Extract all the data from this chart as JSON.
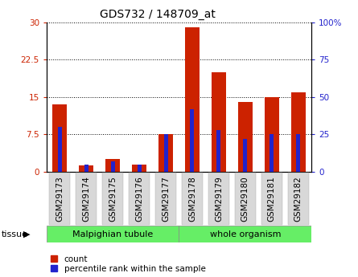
{
  "title": "GDS732 / 148709_at",
  "categories": [
    "GSM29173",
    "GSM29174",
    "GSM29175",
    "GSM29176",
    "GSM29177",
    "GSM29178",
    "GSM29179",
    "GSM29180",
    "GSM29181",
    "GSM29182"
  ],
  "count_values": [
    13.5,
    1.2,
    2.5,
    1.5,
    7.5,
    29.0,
    20.0,
    14.0,
    15.0,
    16.0
  ],
  "percentile_values": [
    30,
    5,
    7,
    5,
    25,
    42,
    28,
    22,
    25,
    25
  ],
  "bar_color": "#cc2200",
  "percentile_color": "#2222cc",
  "bar_width": 0.55,
  "pct_bar_width": 0.15,
  "ylim_left": [
    0,
    30
  ],
  "ylim_right": [
    0,
    100
  ],
  "yticks_left": [
    0,
    7.5,
    15,
    22.5,
    30
  ],
  "yticks_right": [
    0,
    25,
    50,
    75,
    100
  ],
  "ytick_labels_left": [
    "0",
    "7.5",
    "15",
    "22.5",
    "30"
  ],
  "ytick_labels_right": [
    "0",
    "25",
    "50",
    "75",
    "100%"
  ],
  "group1_label": "Malpighian tubule",
  "group2_label": "whole organism",
  "group1_indices": [
    0,
    1,
    2,
    3,
    4
  ],
  "group2_indices": [
    5,
    6,
    7,
    8,
    9
  ],
  "tissue_label": "tissue",
  "legend_count": "count",
  "legend_percentile": "percentile rank within the sample",
  "group_color": "#66ee66",
  "title_fontsize": 10,
  "tick_fontsize": 7.5,
  "label_fontsize": 8
}
